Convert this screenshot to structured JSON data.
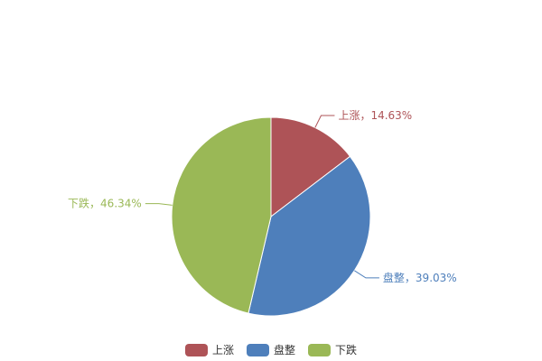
{
  "chart_data": {
    "type": "pie",
    "title": "",
    "legend_position": "bottom",
    "series": [
      {
        "name": "上涨",
        "value": 14.63,
        "label": "上涨，14.63%",
        "color": "#ae5357"
      },
      {
        "name": "盘整",
        "value": 39.03,
        "label": "盘整，39.03%",
        "color": "#4e7fbb"
      },
      {
        "name": "下跌",
        "value": 46.34,
        "label": "下跌，46.34%",
        "color": "#9ab856"
      }
    ]
  }
}
